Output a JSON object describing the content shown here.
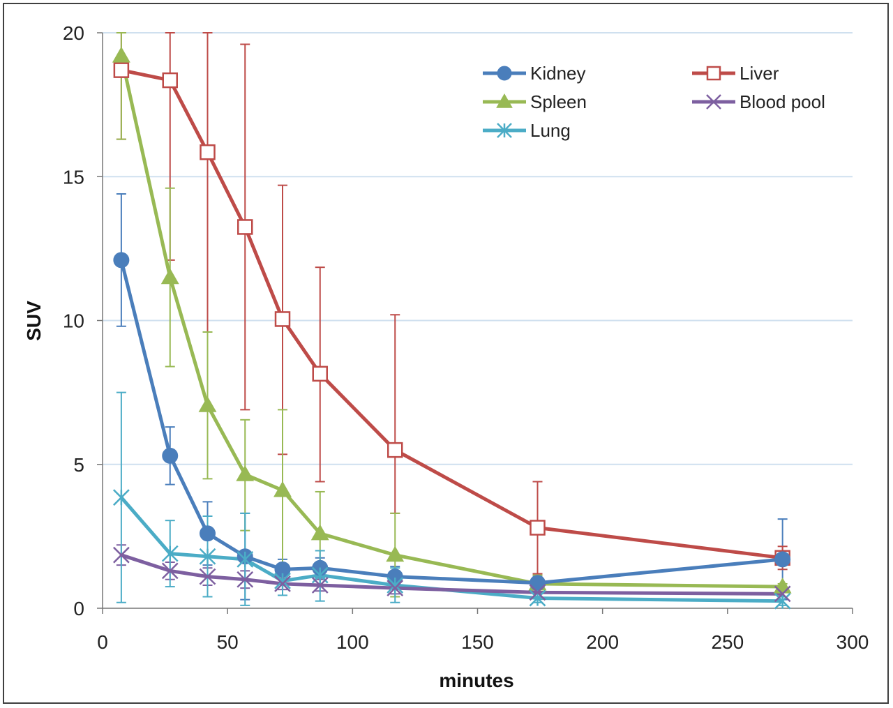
{
  "chart_data": {
    "type": "line",
    "title": "",
    "xlabel": "minutes",
    "ylabel": "SUV",
    "xlim": [
      0,
      300
    ],
    "ylim": [
      0,
      20
    ],
    "xticks": [
      "0",
      "50",
      "100",
      "150",
      "200",
      "250",
      "300"
    ],
    "yticks": [
      "0",
      "5",
      "10",
      "15",
      "20"
    ],
    "grid": "horizontal",
    "legend_position": "top-right",
    "x": [
      7.5,
      27,
      42,
      57,
      72,
      87,
      117,
      174,
      272
    ],
    "series": [
      {
        "name": "Kidney",
        "color": "#4a7ebb",
        "marker": "circle",
        "values": [
          12.1,
          5.3,
          2.6,
          1.8,
          1.35,
          1.4,
          1.1,
          0.88,
          1.7
        ],
        "err_hi": [
          14.4,
          6.3,
          3.7,
          3.3,
          1.7,
          1.75,
          1.45,
          1.1,
          3.1
        ],
        "err_lo": [
          9.8,
          4.3,
          1.5,
          0.3,
          1.0,
          1.05,
          0.75,
          0.65,
          0.3
        ]
      },
      {
        "name": "Liver",
        "color": "#be4b48",
        "marker": "open-square",
        "values": [
          18.7,
          18.35,
          15.85,
          13.25,
          10.05,
          8.15,
          5.5,
          2.8,
          1.75
        ],
        "err_hi": [
          20.0,
          20.0,
          20.0,
          19.6,
          14.7,
          11.85,
          10.2,
          4.4,
          2.15
        ],
        "err_lo": [
          16.3,
          12.1,
          9.6,
          6.9,
          5.35,
          4.4,
          3.3,
          1.2,
          1.35
        ]
      },
      {
        "name": "Spleen",
        "color": "#98b954",
        "marker": "triangle",
        "values": [
          19.2,
          11.5,
          7.05,
          4.65,
          4.1,
          2.6,
          1.85,
          0.85,
          0.75
        ],
        "err_hi": [
          20.0,
          14.6,
          9.6,
          6.55,
          6.9,
          4.05,
          3.3,
          1.15,
          0.85
        ],
        "err_lo": [
          16.3,
          8.4,
          4.5,
          2.7,
          1.3,
          1.15,
          0.4,
          0.55,
          0.65
        ]
      },
      {
        "name": "Blood pool",
        "color": "#7d5fa0",
        "marker": "x",
        "values": [
          1.85,
          1.3,
          1.1,
          1.0,
          0.85,
          0.8,
          0.7,
          0.55,
          0.5
        ],
        "err_hi": [
          2.2,
          1.6,
          1.4,
          1.3,
          1.05,
          1.0,
          0.9,
          0.7,
          0.6
        ],
        "err_lo": [
          1.5,
          1.0,
          0.8,
          0.7,
          0.65,
          0.6,
          0.5,
          0.4,
          0.4
        ]
      },
      {
        "name": "Lung",
        "color": "#4bacc6",
        "marker": "asterisk",
        "values": [
          3.85,
          1.9,
          1.8,
          1.7,
          0.95,
          1.15,
          0.8,
          0.35,
          0.25
        ],
        "err_hi": [
          7.5,
          3.05,
          3.2,
          3.3,
          1.45,
          2.0,
          1.4,
          0.55,
          0.4
        ],
        "err_lo": [
          0.2,
          0.75,
          0.4,
          0.1,
          0.45,
          0.25,
          0.2,
          0.2,
          0.1
        ]
      }
    ],
    "legend_order": [
      "Kidney",
      "Liver",
      "Spleen",
      "Blood pool",
      "Lung"
    ]
  }
}
